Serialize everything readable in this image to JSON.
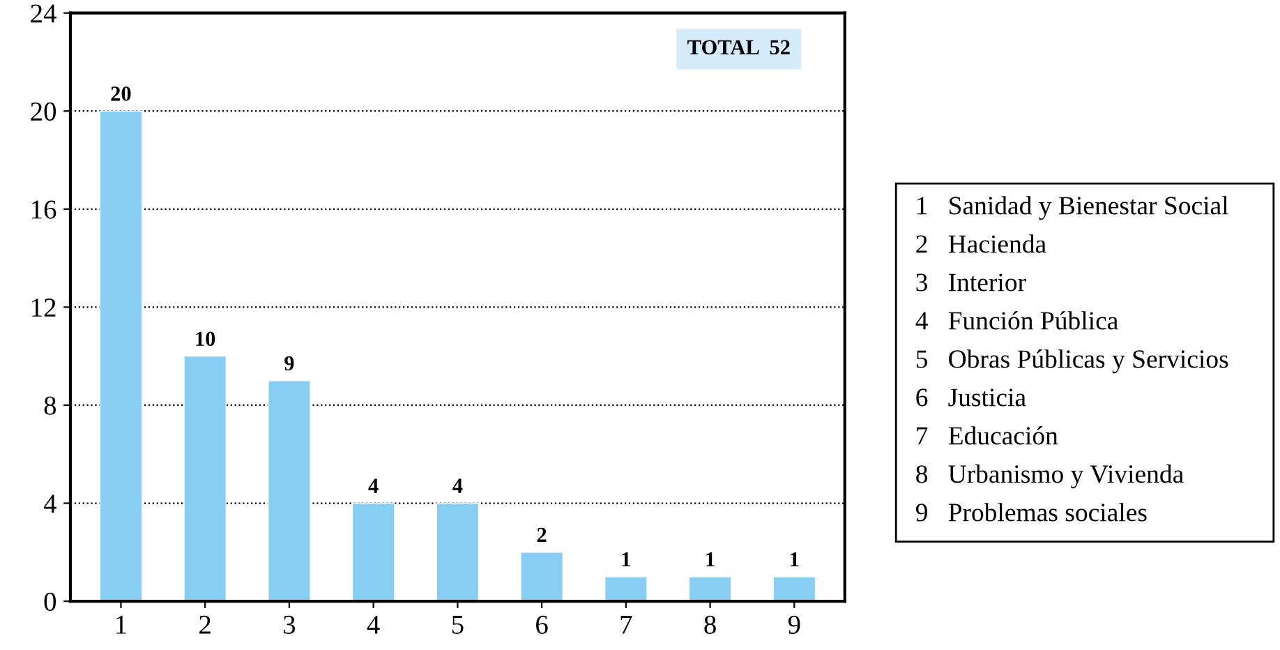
{
  "chart_data": {
    "type": "bar",
    "categories": [
      "1",
      "2",
      "3",
      "4",
      "5",
      "6",
      "7",
      "8",
      "9"
    ],
    "values": [
      20,
      10,
      9,
      4,
      4,
      2,
      1,
      1,
      1
    ],
    "color": "#87cef2",
    "ylim": [
      0,
      24
    ],
    "yticks": [
      0,
      4,
      8,
      12,
      16,
      20,
      24
    ],
    "grid": "y",
    "data_labels": true,
    "annotations": [
      "TOTAL  52",
      "1   Sanidad y Bienestar Social",
      "2   Hacienda",
      "3   Interior",
      "4   Función Pública",
      "5   Obras Públicas y Servicios",
      "6   Justicia",
      "7   Educación",
      "8   Urbanismo y Vivienda",
      "9   Problemas sociales"
    ]
  }
}
